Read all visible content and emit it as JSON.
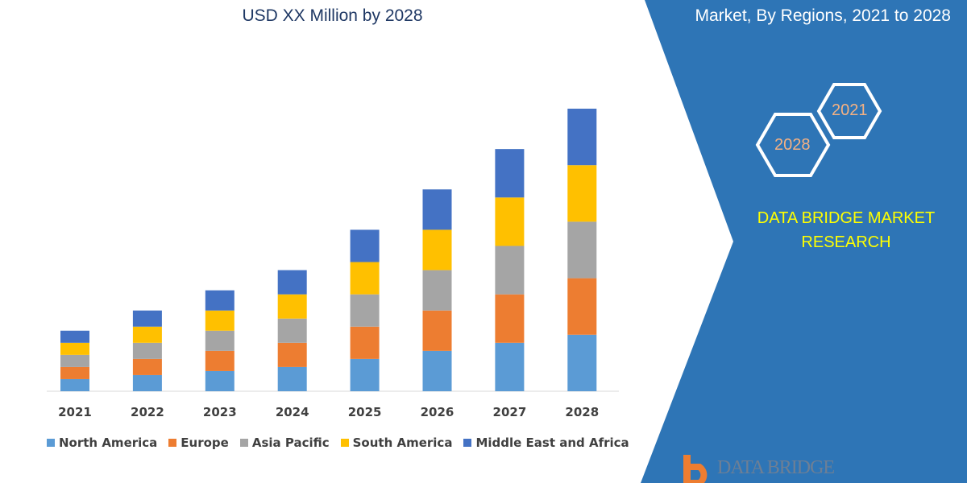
{
  "header": {
    "subtitle": "USD XX Million by 2028",
    "right_title": "Market, By Regions, 2021 to 2028"
  },
  "side_panel": {
    "hex_top": "2021",
    "hex_bottom": "2028",
    "brand": "DATA BRIDGE MARKET RESEARCH",
    "logo_text": "DATA BRIDGE",
    "panel_color": "#2e75b6"
  },
  "chart_data": {
    "type": "bar",
    "stacked": true,
    "categories": [
      "2021",
      "2022",
      "2023",
      "2024",
      "2025",
      "2026",
      "2027",
      "2028"
    ],
    "series": [
      {
        "name": "North America",
        "color": "#5b9bd5",
        "values": [
          15,
          20,
          25,
          30,
          40,
          50,
          60,
          70
        ]
      },
      {
        "name": "Europe",
        "color": "#ed7d31",
        "values": [
          15,
          20,
          25,
          30,
          40,
          50,
          60,
          70
        ]
      },
      {
        "name": "Asia Pacific",
        "color": "#a5a5a5",
        "values": [
          15,
          20,
          25,
          30,
          40,
          50,
          60,
          70
        ]
      },
      {
        "name": "South America",
        "color": "#ffc000",
        "values": [
          15,
          20,
          25,
          30,
          40,
          50,
          60,
          70
        ]
      },
      {
        "name": "Middle East and Africa",
        "color": "#4472c4",
        "values": [
          15,
          20,
          25,
          30,
          40,
          50,
          60,
          70
        ]
      }
    ],
    "ylim": [
      0,
      350
    ],
    "grid": false,
    "legend": "bottom"
  }
}
